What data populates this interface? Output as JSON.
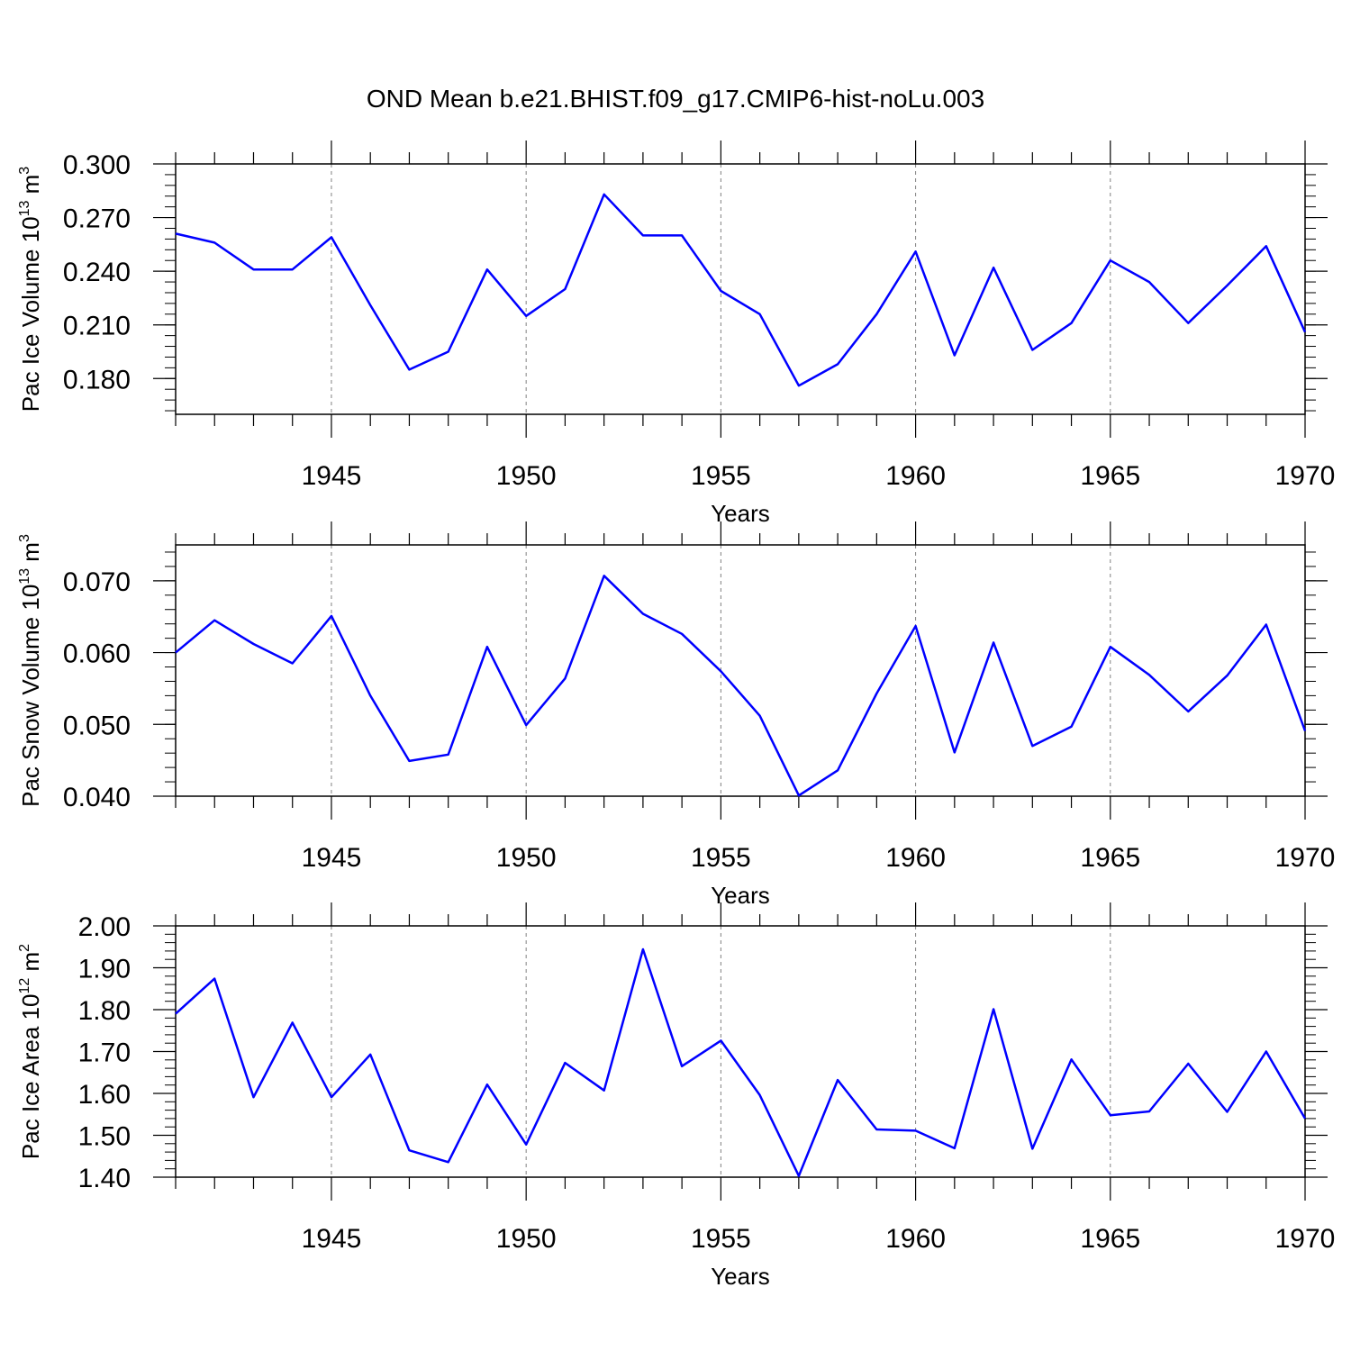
{
  "title": "OND Mean b.e21.BHIST.f09_g17.CMIP6-hist-noLu.003",
  "colors": {
    "line": "#0000ff",
    "axis": "#000000",
    "grid": "#808080"
  },
  "chart_data": [
    {
      "type": "line",
      "ylabel": {
        "main": "Pac Ice Volume 10",
        "exp": "13",
        "unit": " m",
        "unit_exp": "3"
      },
      "xlabel": "Years",
      "xlim": [
        1941,
        1970
      ],
      "ylim": [
        0.16,
        0.3
      ],
      "yticks": [
        0.18,
        0.21,
        0.24,
        0.27,
        0.3
      ],
      "ytick_labels": [
        "0.180",
        "0.210",
        "0.240",
        "0.270",
        "0.300"
      ],
      "xticks": [
        1945,
        1950,
        1955,
        1960,
        1965,
        1970
      ],
      "xtick_labels": [
        "1945",
        "1950",
        "1955",
        "1960",
        "1965",
        "1970"
      ],
      "x": [
        1941,
        1942,
        1943,
        1944,
        1945,
        1946,
        1947,
        1948,
        1949,
        1950,
        1951,
        1952,
        1953,
        1954,
        1955,
        1956,
        1957,
        1958,
        1959,
        1960,
        1961,
        1962,
        1963,
        1964,
        1965,
        1966,
        1967,
        1968,
        1969,
        1970
      ],
      "values": [
        0.261,
        0.256,
        0.241,
        0.241,
        0.259,
        0.221,
        0.185,
        0.195,
        0.241,
        0.215,
        0.23,
        0.283,
        0.26,
        0.26,
        0.229,
        0.216,
        0.176,
        0.188,
        0.216,
        0.251,
        0.193,
        0.242,
        0.196,
        0.211,
        0.246,
        0.234,
        0.211,
        0.232,
        0.254,
        0.206
      ]
    },
    {
      "type": "line",
      "ylabel": {
        "main": "Pac Snow Volume 10",
        "exp": "13",
        "unit": " m",
        "unit_exp": "3"
      },
      "xlabel": "Years",
      "xlim": [
        1941,
        1970
      ],
      "ylim": [
        0.04,
        0.075
      ],
      "yticks": [
        0.04,
        0.05,
        0.06,
        0.07
      ],
      "ytick_labels": [
        "0.040",
        "0.050",
        "0.060",
        "0.070"
      ],
      "xticks": [
        1945,
        1950,
        1955,
        1960,
        1965,
        1970
      ],
      "xtick_labels": [
        "1945",
        "1950",
        "1955",
        "1960",
        "1965",
        "1970"
      ],
      "x": [
        1941,
        1942,
        1943,
        1944,
        1945,
        1946,
        1947,
        1948,
        1949,
        1950,
        1951,
        1952,
        1953,
        1954,
        1955,
        1956,
        1957,
        1958,
        1959,
        1960,
        1961,
        1962,
        1963,
        1964,
        1965,
        1966,
        1967,
        1968,
        1969,
        1970
      ],
      "values": [
        0.06,
        0.0645,
        0.0612,
        0.0585,
        0.0651,
        0.054,
        0.0449,
        0.0458,
        0.0608,
        0.0499,
        0.0564,
        0.0707,
        0.0654,
        0.0626,
        0.0574,
        0.0512,
        0.0401,
        0.0436,
        0.0543,
        0.0637,
        0.0461,
        0.0614,
        0.047,
        0.0497,
        0.0608,
        0.0569,
        0.0518,
        0.0568,
        0.0639,
        0.0491
      ]
    },
    {
      "type": "line",
      "ylabel": {
        "main": "Pac Ice Area 10",
        "exp": "12",
        "unit": " m",
        "unit_exp": "2"
      },
      "xlabel": "Years",
      "xlim": [
        1941,
        1970
      ],
      "ylim": [
        1.4,
        2.0
      ],
      "yticks": [
        1.4,
        1.5,
        1.6,
        1.7,
        1.8,
        1.9,
        2.0
      ],
      "ytick_labels": [
        "1.40",
        "1.50",
        "1.60",
        "1.70",
        "1.80",
        "1.90",
        "2.00"
      ],
      "xticks": [
        1945,
        1950,
        1955,
        1960,
        1965,
        1970
      ],
      "xtick_labels": [
        "1945",
        "1950",
        "1955",
        "1960",
        "1965",
        "1970"
      ],
      "x": [
        1941,
        1942,
        1943,
        1944,
        1945,
        1946,
        1947,
        1948,
        1949,
        1950,
        1951,
        1952,
        1953,
        1954,
        1955,
        1956,
        1957,
        1958,
        1959,
        1960,
        1961,
        1962,
        1963,
        1964,
        1965,
        1966,
        1967,
        1968,
        1969,
        1970
      ],
      "values": [
        1.79,
        1.874,
        1.591,
        1.769,
        1.591,
        1.693,
        1.464,
        1.436,
        1.621,
        1.478,
        1.673,
        1.607,
        1.944,
        1.665,
        1.726,
        1.596,
        1.403,
        1.632,
        1.514,
        1.511,
        1.469,
        1.801,
        1.468,
        1.681,
        1.548,
        1.557,
        1.671,
        1.556,
        1.7,
        1.54
      ]
    }
  ]
}
